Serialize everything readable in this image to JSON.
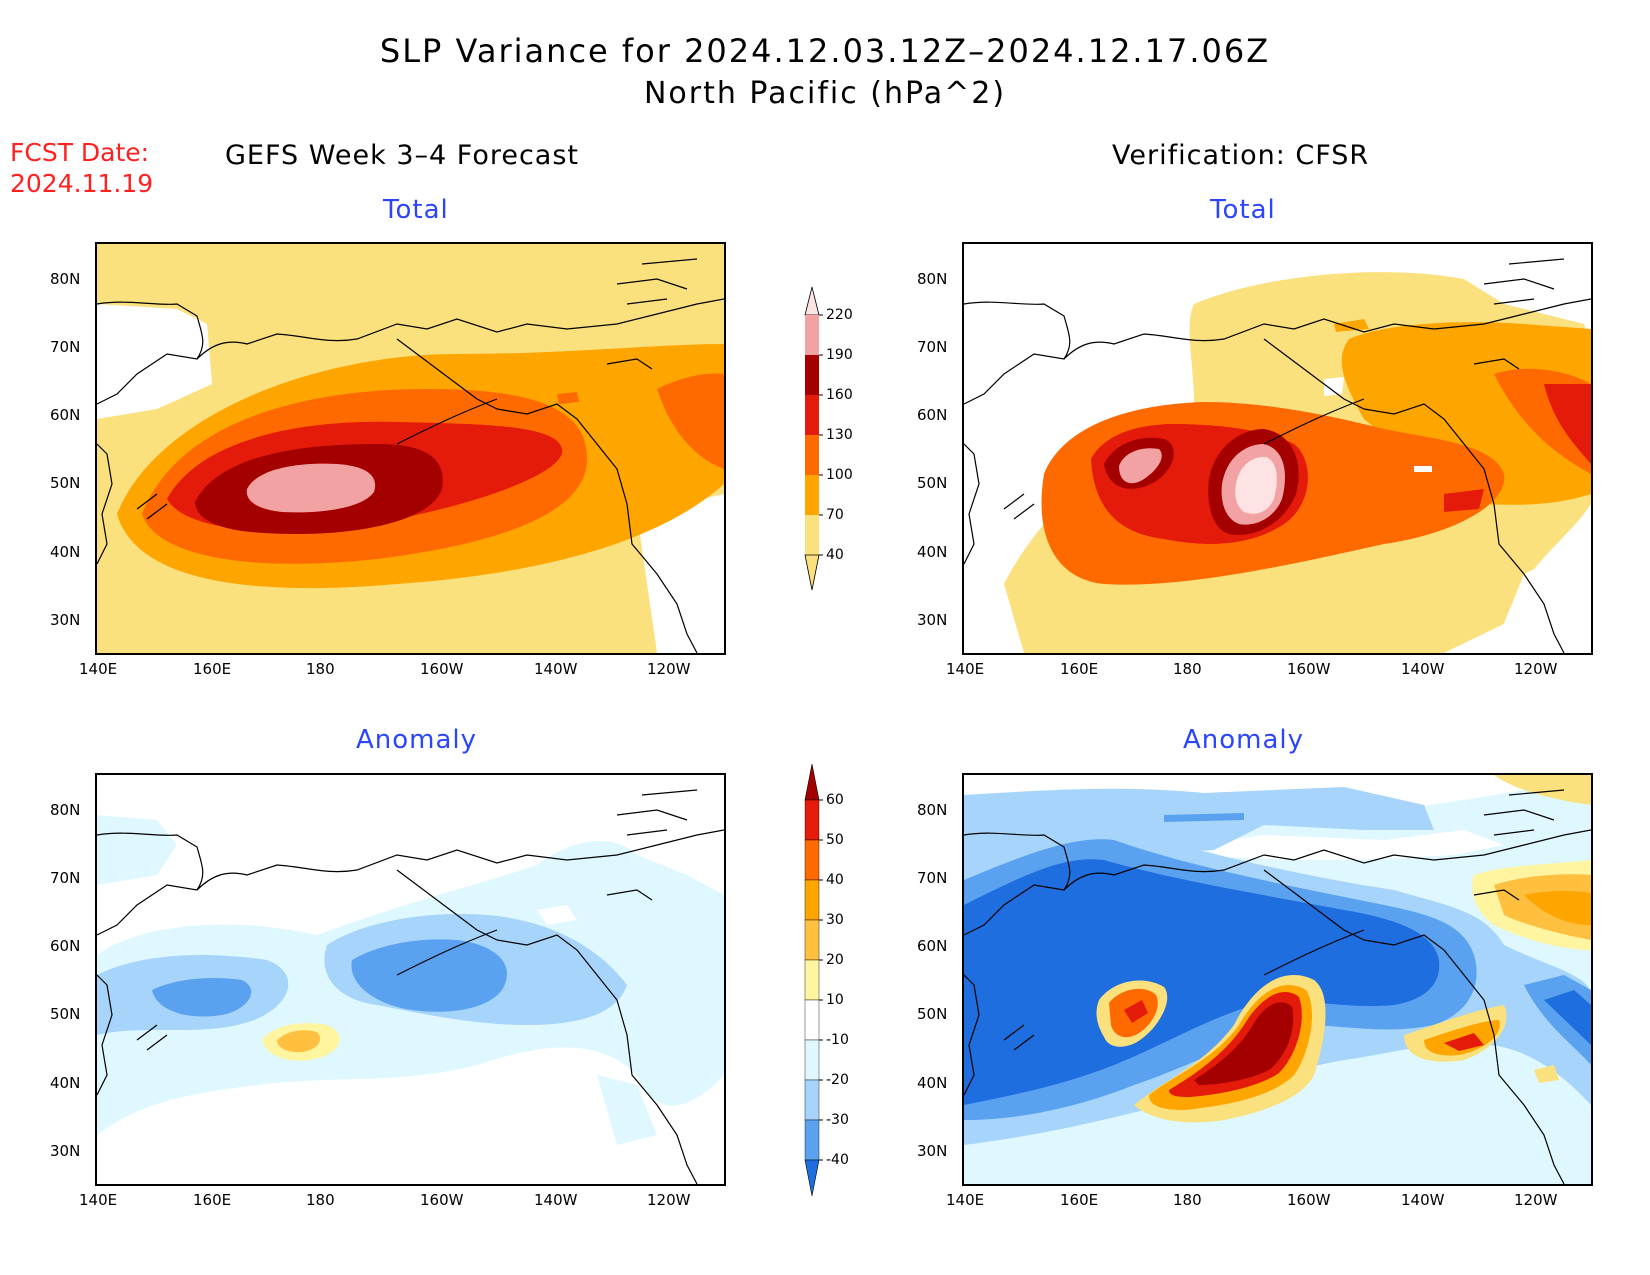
{
  "header": {
    "title": "SLP Variance for 2024.12.03.12Z–2024.12.17.06Z",
    "subtitle": "North Pacific (hPa^2)",
    "fcst_label": "FCST Date:",
    "fcst_date": "2024.11.19"
  },
  "columns": {
    "left": "GEFS Week 3–4 Forecast",
    "right": "Verification: CFSR"
  },
  "panels": {
    "total_label": "Total",
    "anomaly_label": "Anomaly"
  },
  "axes": {
    "lat_labels": [
      "80N",
      "70N",
      "60N",
      "50N",
      "40N",
      "30N"
    ],
    "lon_labels": [
      "140E",
      "160E",
      "180",
      "160W",
      "140W",
      "120W"
    ]
  },
  "colorbars": {
    "total": {
      "levels": [
        "40",
        "70",
        "100",
        "130",
        "160",
        "190",
        "220"
      ],
      "colors": [
        "#fbe07e",
        "#ffa500",
        "#ff6a00",
        "#e41a0a",
        "#a50000",
        "#f2a2a2",
        "#fde3e3"
      ]
    },
    "anomaly": {
      "levels": [
        "60",
        "50",
        "40",
        "30",
        "20",
        "10",
        "-10",
        "-20",
        "-30",
        "-40"
      ],
      "colors": [
        "#a50000",
        "#e41a0a",
        "#ff6a00",
        "#ffa500",
        "#ffc040",
        "#fff4a0",
        "#ffffff",
        "#dff8ff",
        "#a6d4fa",
        "#5aa2f0",
        "#1e6ee0"
      ]
    }
  }
}
